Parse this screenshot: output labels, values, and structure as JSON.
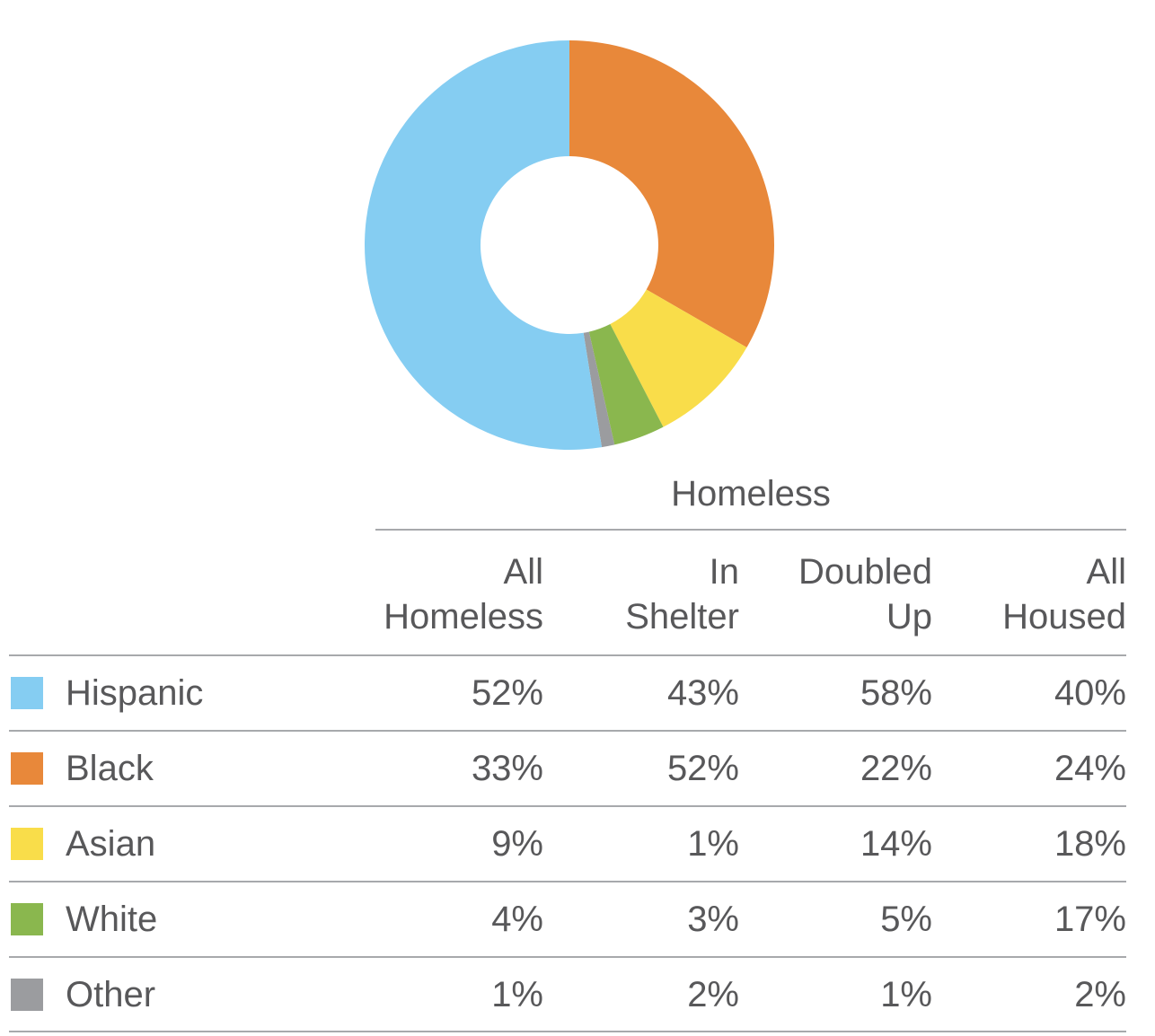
{
  "chart_data": {
    "type": "pie",
    "style": "donut",
    "title": "",
    "slices": [
      {
        "label": "Black",
        "value": 33,
        "color": "#e8883a"
      },
      {
        "label": "Asian",
        "value": 9,
        "color": "#f9dd4a"
      },
      {
        "label": "White",
        "value": 4,
        "color": "#8ab74e"
      },
      {
        "label": "Other",
        "value": 1,
        "color": "#9b9c9f"
      },
      {
        "label": "Hispanic",
        "value": 52,
        "color": "#85cdf2"
      }
    ]
  },
  "table": {
    "group_header": "Homeless",
    "columns": [
      {
        "line1": "All",
        "line2": "Homeless"
      },
      {
        "line1": "In",
        "line2": "Shelter"
      },
      {
        "line1": "Doubled",
        "line2": "Up"
      },
      {
        "line1": "All",
        "line2": "Housed"
      }
    ],
    "rows": [
      {
        "label": "Hispanic",
        "color": "#85cdf2",
        "values": [
          "52%",
          "43%",
          "58%",
          "40%"
        ]
      },
      {
        "label": "Black",
        "color": "#e8883a",
        "values": [
          "33%",
          "52%",
          "22%",
          "24%"
        ]
      },
      {
        "label": "Asian",
        "color": "#f9dd4a",
        "values": [
          "9%",
          "1%",
          "14%",
          "18%"
        ]
      },
      {
        "label": "White",
        "color": "#8ab74e",
        "values": [
          "4%",
          "3%",
          "5%",
          "17%"
        ]
      },
      {
        "label": "Other",
        "color": "#9b9c9f",
        "values": [
          "1%",
          "2%",
          "1%",
          "2%"
        ]
      }
    ]
  }
}
